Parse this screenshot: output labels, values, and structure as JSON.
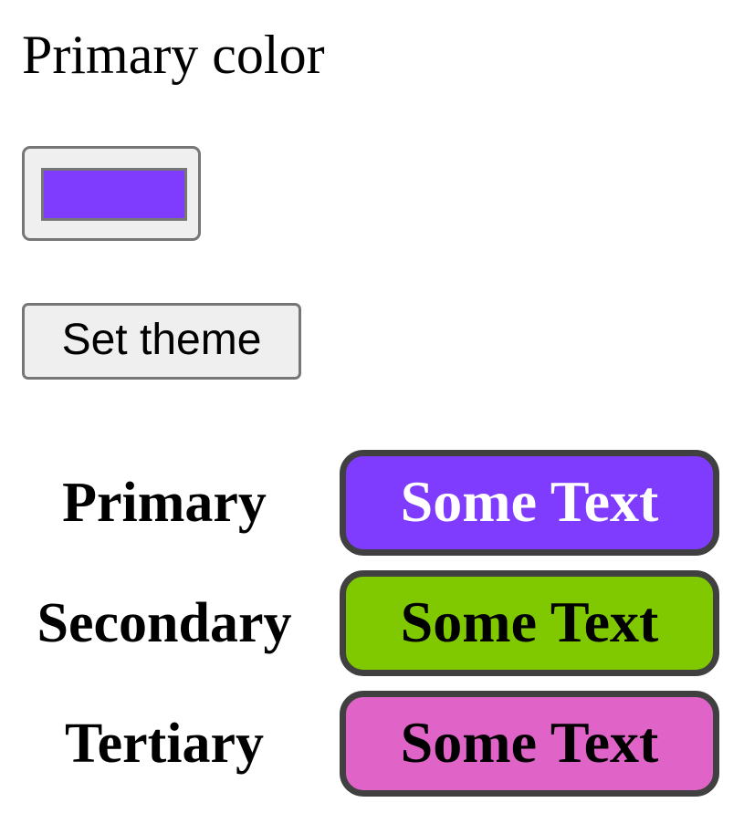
{
  "picker": {
    "label": "Primary color",
    "value": "#7f3cff"
  },
  "actions": {
    "set_theme_label": "Set theme"
  },
  "theme_rows": [
    {
      "label": "Primary",
      "sample_text": "Some Text",
      "background": "#7f3cff",
      "text_color": "#ffffff"
    },
    {
      "label": "Secondary",
      "sample_text": "Some Text",
      "background": "#80c800",
      "text_color": "#000000"
    },
    {
      "label": "Tertiary",
      "sample_text": "Some Text",
      "background": "#e064c8",
      "text_color": "#000000"
    }
  ],
  "colors": {
    "button_border": "#404040",
    "control_border": "#767676",
    "control_background": "#efefef"
  }
}
